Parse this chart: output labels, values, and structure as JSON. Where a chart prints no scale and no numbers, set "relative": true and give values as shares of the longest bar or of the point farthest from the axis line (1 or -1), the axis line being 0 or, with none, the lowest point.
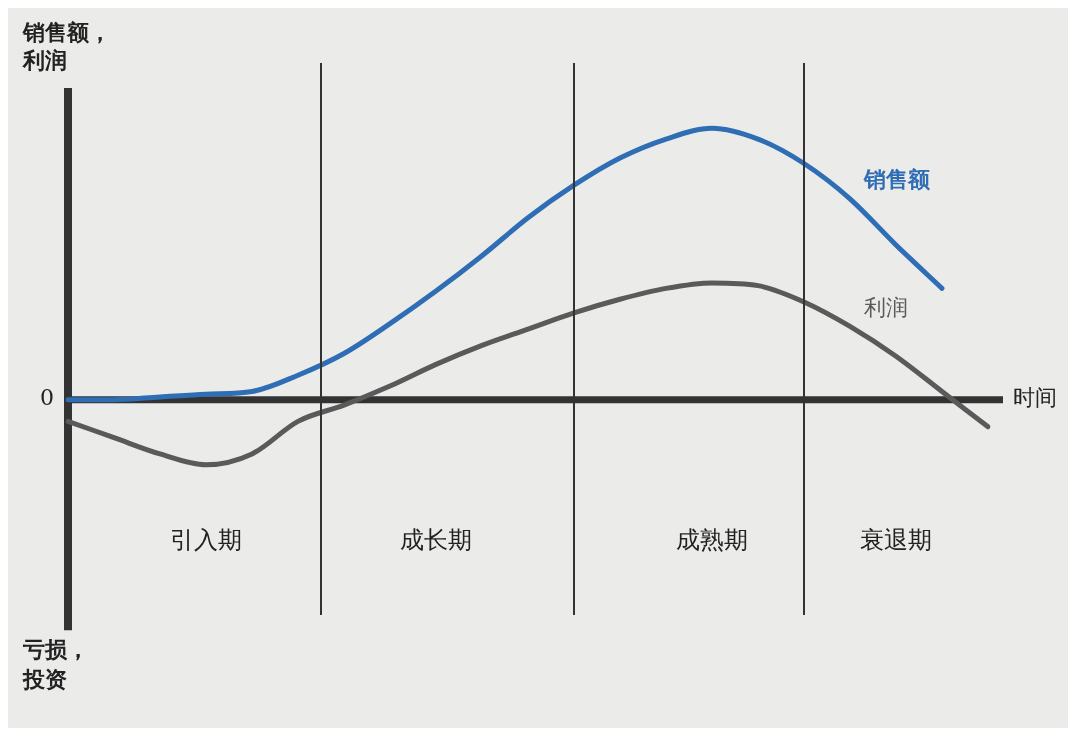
{
  "chart_data": {
    "type": "line",
    "relative": true,
    "marker": "none",
    "ylabel": "销售额，利润",
    "xlabel": "时间",
    "annotations": [
      "0",
      "亏损，投资"
    ],
    "categories": [
      null,
      null,
      null,
      "引入期",
      null,
      null,
      null,
      null,
      "成长期",
      null,
      null,
      null,
      null,
      null,
      "成熟期",
      null,
      null,
      null,
      "衰退期",
      null,
      null
    ],
    "series": [
      {
        "name": "销售额",
        "color": "#2f6db5",
        "values": [
          0,
          0,
          0.01,
          0.02,
          0.03,
          0.09,
          0.17,
          0.28,
          0.4,
          0.53,
          0.67,
          0.79,
          0.89,
          0.96,
          1,
          0.96,
          0.87,
          0.74,
          0.57,
          0.41,
          null
        ]
      },
      {
        "name": "利润",
        "color": "#5a5a5a",
        "values": [
          -0.08,
          -0.14,
          -0.2,
          -0.24,
          -0.2,
          -0.08,
          -0.02,
          0.05,
          0.13,
          0.2,
          0.26,
          0.32,
          0.37,
          0.41,
          0.43,
          0.42,
          0.36,
          0.27,
          0.16,
          0.03,
          -0.1
        ]
      }
    ]
  }
}
